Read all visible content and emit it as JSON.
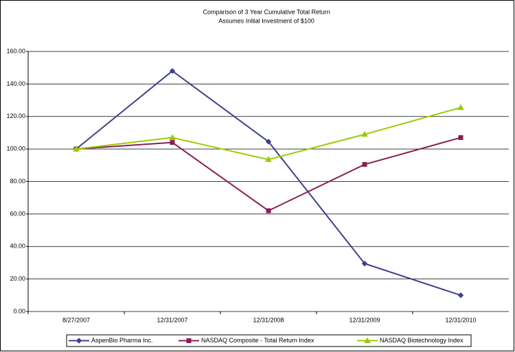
{
  "chart_data": {
    "type": "line",
    "title": "Comparison of 3 Year Cumulative Total Return",
    "subtitle": "Assumes Initial Investment of $100",
    "categories": [
      "8/27/2007",
      "12/31/2007",
      "12/31/2008",
      "12/31/2009",
      "12/31/2010"
    ],
    "series": [
      {
        "name": "AspenBio Pharma Inc.",
        "color": "#3f3f8c",
        "marker": "diamond",
        "values": [
          100,
          148,
          104.5,
          29.5,
          10
        ]
      },
      {
        "name": "NASDAQ Composite - Total Return Index",
        "color": "#8a1e52",
        "marker": "square",
        "values": [
          100,
          104,
          62,
          90.5,
          107
        ]
      },
      {
        "name": "NASDAQ Biotechnology Index",
        "color": "#99cc00",
        "marker": "triangle",
        "values": [
          100,
          107,
          93.5,
          109,
          125.5
        ]
      }
    ],
    "ylim": [
      0,
      160
    ],
    "yticks": [
      {
        "value": 0,
        "label": "0.00"
      },
      {
        "value": 20,
        "label": "20.00"
      },
      {
        "value": 40,
        "label": "40.00"
      },
      {
        "value": 60,
        "label": "60.00"
      },
      {
        "value": 80,
        "label": "80.00"
      },
      {
        "value": 100,
        "label": "100.00"
      },
      {
        "value": 120,
        "label": "120.00"
      },
      {
        "value": 140,
        "label": "140.00"
      },
      {
        "value": 160,
        "label": "160.00"
      }
    ],
    "grid": true,
    "legend": "bottom"
  }
}
